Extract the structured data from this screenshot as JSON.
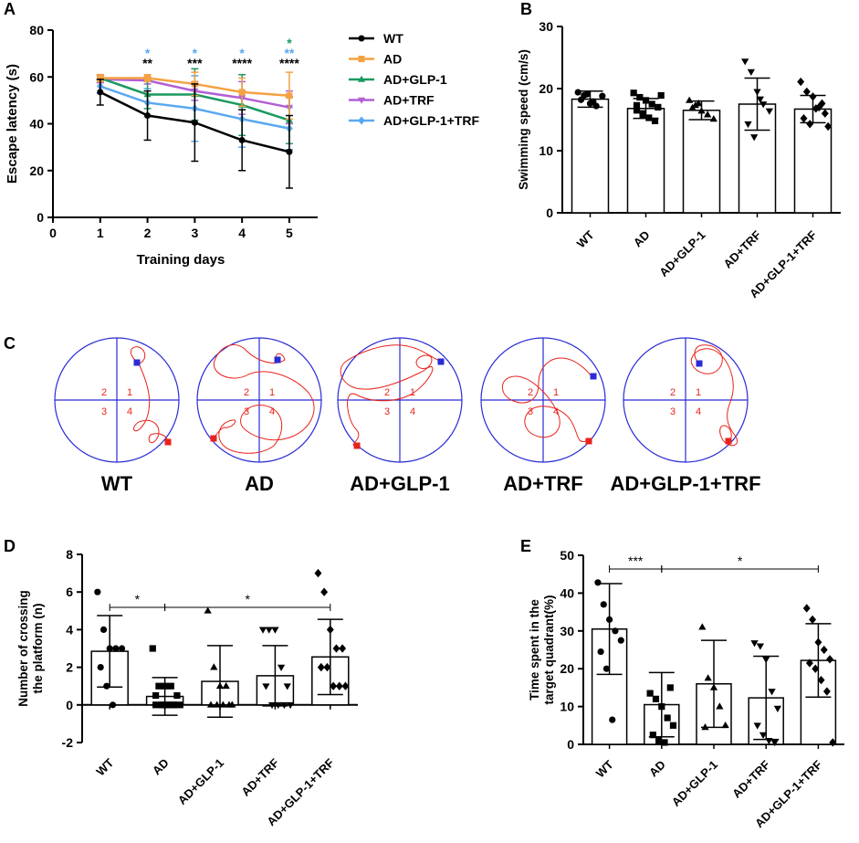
{
  "panels": {
    "A": "A",
    "B": "B",
    "C": "C",
    "D": "D",
    "E": "E"
  },
  "colors": {
    "WT": "#000000",
    "AD": "#f5a142",
    "AD+GLP-1": "#1a9960",
    "AD+TRF": "#b25fd6",
    "AD+GLP-1+TRF": "#5aa8f0",
    "track": "#e8231b",
    "maze": "#2b2bd6"
  },
  "chart_data": [
    {
      "id": "A",
      "type": "line",
      "xlabel": "Training days",
      "ylabel": "Escape latency (s)",
      "xlim": [
        0,
        5.6
      ],
      "ylim": [
        0,
        80
      ],
      "xticks": [
        0,
        1,
        2,
        3,
        4,
        5
      ],
      "yticks": [
        0,
        20,
        40,
        60,
        80
      ],
      "series": [
        {
          "name": "WT",
          "x": [
            1,
            2,
            3,
            4,
            5
          ],
          "values": [
            53.5,
            43.5,
            40.5,
            33,
            28
          ],
          "err": [
            5.5,
            10.5,
            16.5,
            13,
            15.5
          ],
          "marker": "circle"
        },
        {
          "name": "AD",
          "x": [
            1,
            2,
            3,
            4,
            5
          ],
          "values": [
            59.5,
            59.5,
            57,
            53.5,
            52
          ],
          "err": [
            1.5,
            1.5,
            5,
            6,
            10
          ],
          "marker": "square"
        },
        {
          "name": "AD+GLP-1",
          "x": [
            1,
            2,
            3,
            4,
            5
          ],
          "values": [
            59.5,
            52.5,
            52.5,
            48,
            41.5
          ],
          "err": [
            1.5,
            6,
            11,
            13,
            10
          ],
          "marker": "triangle"
        },
        {
          "name": "AD+TRF",
          "x": [
            1,
            2,
            3,
            4,
            5
          ],
          "values": [
            59,
            58.5,
            54,
            51,
            47
          ],
          "err": [
            1.5,
            1.5,
            4,
            7,
            7
          ],
          "marker": "invtriangle"
        },
        {
          "name": "AD+GLP-1+TRF",
          "x": [
            1,
            2,
            3,
            4,
            5
          ],
          "values": [
            56,
            49,
            46.5,
            42,
            38
          ],
          "err": [
            3,
            6,
            14,
            12,
            9
          ],
          "marker": "diamond"
        }
      ],
      "annotations": [
        {
          "x": 2,
          "lines": [
            {
              "text": "*",
              "color": "#5aa8f0"
            },
            {
              "text": "**",
              "color": "#000000"
            }
          ]
        },
        {
          "x": 3,
          "lines": [
            {
              "text": "*",
              "color": "#5aa8f0"
            },
            {
              "text": "***",
              "color": "#000000"
            }
          ]
        },
        {
          "x": 4,
          "lines": [
            {
              "text": "*",
              "color": "#5aa8f0"
            },
            {
              "text": "****",
              "color": "#000000"
            }
          ]
        },
        {
          "x": 5,
          "lines": [
            {
              "text": "*",
              "color": "#1a9960"
            },
            {
              "text": "**",
              "color": "#5aa8f0"
            },
            {
              "text": "****",
              "color": "#000000"
            }
          ]
        }
      ],
      "legend": [
        "WT",
        "AD",
        "AD+GLP-1",
        "AD+TRF",
        "AD+GLP-1+TRF"
      ]
    },
    {
      "id": "B",
      "type": "bar",
      "ylabel": "Swimming speed (cm/s)",
      "ylim": [
        0,
        30
      ],
      "yticks": [
        0,
        10,
        20,
        30
      ],
      "categories": [
        "WT",
        "AD",
        "AD+GLP-1",
        "AD+TRF",
        "AD+GLP-1+TRF"
      ],
      "values": [
        18.3,
        16.8,
        16.5,
        17.5,
        16.7
      ],
      "err": [
        1.3,
        1.6,
        1.5,
        4.2,
        2.2
      ],
      "points": [
        [
          19.4,
          18.9,
          17.6,
          17.2,
          18.8,
          18.2,
          19.1,
          17.9
        ],
        [
          19.3,
          18.6,
          18.1,
          17.5,
          17.0,
          16.5,
          16.0,
          15.3,
          14.8,
          18.9,
          17.3,
          15.7
        ],
        [
          18.1,
          17.3,
          16.4,
          15.8,
          15.1,
          16.9,
          17.6
        ],
        [
          24.4,
          22.7,
          19.5,
          17.5,
          16.4,
          14.3,
          12.2,
          18.3
        ],
        [
          21.1,
          19.5,
          18.7,
          17.0,
          16.0,
          15.2,
          14.3,
          16.8,
          17.6,
          13.9
        ]
      ],
      "markers": [
        "circle",
        "square",
        "triangle",
        "invtriangle",
        "diamond"
      ]
    },
    {
      "id": "D",
      "type": "bar",
      "ylabel": "Number of crossing the platform (n)",
      "ylabel_lines": [
        "Number of crossing",
        "the platform (n)"
      ],
      "ylim": [
        -2,
        8
      ],
      "yticks": [
        -2,
        0,
        2,
        4,
        6,
        8
      ],
      "categories": [
        "WT",
        "AD",
        "AD+GLP-1",
        "AD+TRF",
        "AD+GLP-1+TRF"
      ],
      "values": [
        2.85,
        0.45,
        1.25,
        1.55,
        2.55
      ],
      "err": [
        1.9,
        1.0,
        1.9,
        1.6,
        2.0
      ],
      "points": [
        [
          6,
          4,
          3,
          3,
          3,
          2,
          1,
          0
        ],
        [
          3,
          1,
          1,
          1,
          0.5,
          0.5,
          0,
          0,
          0,
          0,
          0,
          0,
          0,
          0
        ],
        [
          5,
          2,
          1,
          1,
          0,
          0,
          0,
          0,
          0
        ],
        [
          4,
          4,
          4,
          2,
          1,
          1,
          0,
          0,
          0,
          0
        ],
        [
          7,
          6,
          4,
          3,
          3,
          2,
          2,
          1,
          1,
          1
        ]
      ],
      "markers": [
        "circle",
        "square",
        "triangle",
        "invtriangle",
        "diamond"
      ],
      "sig": [
        {
          "from": 0,
          "to": 1,
          "text": "*"
        },
        {
          "from": 1,
          "to": 4,
          "text": "*"
        }
      ]
    },
    {
      "id": "E",
      "type": "bar",
      "ylabel": "Time spent in the target quadrant(%)",
      "ylabel_lines": [
        "Time spent in the",
        "target quadrant(%)"
      ],
      "ylim": [
        0,
        50
      ],
      "yticks": [
        0,
        10,
        20,
        30,
        40,
        50
      ],
      "categories": [
        "WT",
        "AD",
        "AD+GLP-1",
        "AD+TRF",
        "AD+GLP-1+TRF"
      ],
      "values": [
        30.5,
        10.5,
        16.0,
        12.3,
        22.2
      ],
      "err": [
        12,
        8.5,
        11.5,
        11,
        9.7
      ],
      "points": [
        [
          42.8,
          37,
          33,
          30,
          27.5,
          24.5,
          20,
          6.5
        ],
        [
          13.5,
          12,
          10,
          7,
          5,
          2.5,
          1,
          0.5,
          15
        ],
        [
          31,
          17.5,
          15,
          10,
          5,
          4.5
        ],
        [
          26.8,
          26,
          22.5,
          14,
          9.5,
          5,
          2.5,
          1,
          0.5
        ],
        [
          36,
          33,
          27,
          25,
          22.5,
          21.5,
          20,
          17,
          14,
          0.5
        ]
      ],
      "markers": [
        "circle",
        "square",
        "triangle",
        "invtriangle",
        "diamond"
      ],
      "sig": [
        {
          "from": 0,
          "to": 1,
          "text": "***"
        },
        {
          "from": 1,
          "to": 4,
          "text": "*"
        }
      ]
    }
  ],
  "mazes": {
    "labels": [
      "WT",
      "AD",
      "AD+GLP-1",
      "AD+TRF",
      "AD+GLP-1+TRF"
    ],
    "quadrants": [
      "1",
      "2",
      "3",
      "4"
    ]
  }
}
